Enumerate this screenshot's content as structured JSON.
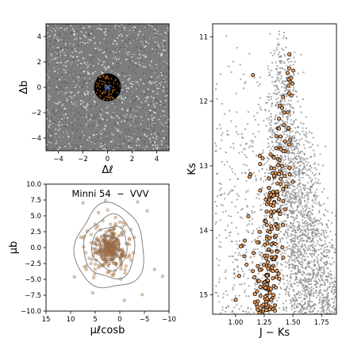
{
  "figure": {
    "cluster_label": "Minni 54  −  VVV"
  },
  "colors": {
    "field_star": "#8a8a8a",
    "member_fill": "#f4a460",
    "member_edge": "#000000",
    "pm_member": "#c8a07a",
    "contour": "#777777",
    "center_marker": "#3a7bd5",
    "cluster_disk": "#000000"
  },
  "chart_data": [
    {
      "type": "scatter",
      "panel": "sky-position",
      "xlabel": "Δℓ",
      "ylabel": "Δb",
      "xlim": [
        -5,
        5
      ],
      "ylim": [
        -5,
        5
      ],
      "xticks": [
        -4,
        -2,
        0,
        2,
        4
      ],
      "yticks": [
        -4,
        -2,
        0,
        2,
        4
      ],
      "cluster_center": [
        0,
        0
      ],
      "cluster_radius": 1.1,
      "series": []
    },
    {
      "type": "scatter",
      "panel": "proper-motion",
      "xlabel": "μℓcosb",
      "ylabel": "μb",
      "xlim": [
        15,
        -10
      ],
      "ylim": [
        -10,
        10
      ],
      "xticks": [
        15,
        10,
        5,
        0,
        -5,
        -10
      ],
      "yticks": [
        -10.0,
        -7.5,
        -5.0,
        -2.5,
        0.0,
        2.5,
        5.0,
        7.5,
        10.0
      ],
      "contour_levels": [
        2.0,
        3.6,
        5.2,
        7.0
      ],
      "center": [
        2.0,
        0.0
      ],
      "series": []
    },
    {
      "type": "scatter",
      "panel": "cmd",
      "xlabel": "J − Ks",
      "ylabel": "Ks",
      "xlim": [
        0.8,
        1.88
      ],
      "ylim": [
        15.3,
        10.8
      ],
      "xticks": [
        1.0,
        1.25,
        1.5,
        1.75
      ],
      "xticklabels": [
        "1.00",
        "1.25",
        "1.50",
        "1.75"
      ],
      "yticks": [
        11,
        12,
        13,
        14,
        15
      ],
      "series": []
    }
  ]
}
